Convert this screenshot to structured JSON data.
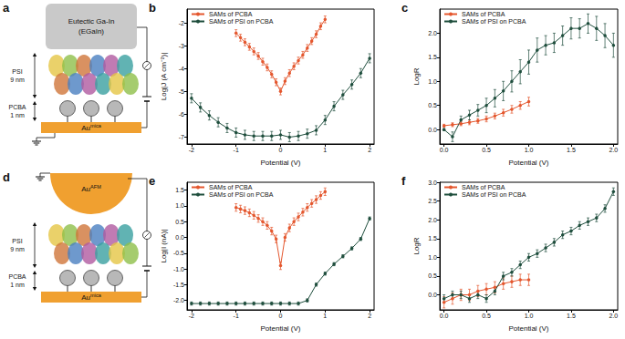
{
  "diagrams": [
    {
      "panel": "a",
      "top_electrode": [
        "Eutectic Ga-In",
        "(EGaIn)"
      ],
      "layers": [
        {
          "label": "PSI",
          "thickness": "9 nm"
        },
        {
          "label": "PCBA",
          "thickness": "1 nm"
        }
      ],
      "substrate": {
        "text": "Au",
        "sup": "mica"
      }
    },
    {
      "panel": "d",
      "top_electrode": {
        "text": "Au",
        "sup": "AFM"
      },
      "layers": [
        {
          "label": "PSI",
          "thickness": "9 nm"
        },
        {
          "label": "PCBA",
          "thickness": "1 nm"
        }
      ],
      "substrate": {
        "text": "Au",
        "sup": "mica"
      }
    }
  ],
  "chart_data": [
    {
      "type": "line",
      "panel": "b",
      "xlabel": "Potential (V)",
      "ylabel": "Log|J (A cm⁻²)|",
      "xlim": [
        -2.1,
        2.1
      ],
      "xticks": [
        -2,
        -1,
        0,
        1,
        2
      ],
      "ylim": [
        -7.3,
        -1.4
      ],
      "yticks": [
        -7,
        -6,
        -5,
        -4,
        -3,
        -2
      ],
      "grid": false,
      "legend": "upper left",
      "series": [
        {
          "name": "SAMs of PCBA",
          "color": "#e4572e",
          "marker": "circle",
          "line_style": "solid",
          "x": [
            -1,
            -0.9,
            -0.8,
            -0.7,
            -0.6,
            -0.5,
            -0.4,
            -0.3,
            -0.2,
            -0.1,
            0,
            0.1,
            0.2,
            0.3,
            0.4,
            0.5,
            0.6,
            0.7,
            0.8,
            0.9,
            1
          ],
          "values": [
            -2.45,
            -2.65,
            -2.85,
            -3.05,
            -3.25,
            -3.45,
            -3.7,
            -3.95,
            -4.25,
            -4.6,
            -5.0,
            -4.55,
            -4.2,
            -3.9,
            -3.65,
            -3.4,
            -3.1,
            -2.8,
            -2.5,
            -2.15,
            -1.85
          ],
          "errors": [
            0.15,
            0.15,
            0.15,
            0.15,
            0.15,
            0.15,
            0.15,
            0.15,
            0.15,
            0.15,
            0.15,
            0.15,
            0.15,
            0.15,
            0.15,
            0.15,
            0.15,
            0.15,
            0.15,
            0.15,
            0.15
          ]
        },
        {
          "name": "SAMs of PSI on PCBA",
          "color": "#1f4e3d",
          "marker": "circle",
          "line_style": "solid",
          "x": [
            -2,
            -1.8,
            -1.6,
            -1.4,
            -1.2,
            -1,
            -0.8,
            -0.6,
            -0.4,
            -0.2,
            0,
            0.2,
            0.4,
            0.6,
            0.8,
            1,
            1.2,
            1.4,
            1.6,
            1.8,
            2
          ],
          "values": [
            -5.3,
            -5.7,
            -6.05,
            -6.35,
            -6.6,
            -6.8,
            -6.9,
            -6.95,
            -6.95,
            -6.95,
            -6.9,
            -7.0,
            -6.95,
            -6.85,
            -6.7,
            -6.25,
            -5.65,
            -5.15,
            -4.7,
            -4.2,
            -3.55
          ],
          "errors": [
            0.2,
            0.2,
            0.2,
            0.2,
            0.2,
            0.2,
            0.2,
            0.2,
            0.2,
            0.2,
            0.2,
            0.2,
            0.2,
            0.2,
            0.2,
            0.2,
            0.2,
            0.2,
            0.2,
            0.2,
            0.2
          ]
        }
      ]
    },
    {
      "type": "line",
      "panel": "c",
      "xlabel": "Potential (V)",
      "ylabel": "LogR",
      "xlim": [
        -0.05,
        2.05
      ],
      "xticks": [
        {
          "value": 0,
          "label": "0.0"
        },
        0.5,
        {
          "value": 1,
          "label": "1.0"
        },
        1.5,
        {
          "value": 2,
          "label": "2.0"
        }
      ],
      "ylim": [
        -0.3,
        2.5
      ],
      "yticks": [
        {
          "value": 0,
          "label": "0.0"
        },
        0.5,
        {
          "value": 1,
          "label": "1.0"
        },
        1.5,
        {
          "value": 2,
          "label": "2.0"
        }
      ],
      "grid": false,
      "legend": "upper left",
      "series": [
        {
          "name": "SAMs of PCBA",
          "color": "#e4572e",
          "marker": "circle",
          "line_style": "solid",
          "x": [
            0,
            0.1,
            0.2,
            0.3,
            0.4,
            0.5,
            0.6,
            0.7,
            0.8,
            0.9,
            1
          ],
          "values": [
            0.08,
            0.1,
            0.12,
            0.15,
            0.18,
            0.22,
            0.28,
            0.35,
            0.42,
            0.5,
            0.58
          ],
          "errors": [
            0.03,
            0.04,
            0.04,
            0.05,
            0.05,
            0.06,
            0.06,
            0.07,
            0.08,
            0.08,
            0.09
          ]
        },
        {
          "name": "SAMs of PSI on PCBA",
          "color": "#1f4e3d",
          "marker": "circle",
          "line_style": "solid",
          "x": [
            0,
            0.1,
            0.2,
            0.3,
            0.4,
            0.5,
            0.6,
            0.7,
            0.8,
            0.9,
            1,
            1.1,
            1.2,
            1.3,
            1.4,
            1.5,
            1.6,
            1.7,
            1.8,
            1.9,
            2
          ],
          "values": [
            0.0,
            -0.15,
            0.2,
            0.3,
            0.4,
            0.5,
            0.65,
            0.8,
            1.0,
            1.2,
            1.4,
            1.65,
            1.75,
            1.8,
            1.95,
            2.1,
            2.1,
            2.2,
            2.1,
            1.95,
            1.75
          ],
          "errors": [
            0.02,
            0.1,
            0.08,
            0.1,
            0.12,
            0.15,
            0.18,
            0.2,
            0.22,
            0.25,
            0.25,
            0.25,
            0.2,
            0.2,
            0.2,
            0.22,
            0.2,
            0.2,
            0.25,
            0.25,
            0.25
          ]
        }
      ]
    },
    {
      "type": "line",
      "panel": "e",
      "xlabel": "Potential (V)",
      "ylabel": "Log|I (nA)|",
      "xlim": [
        -2.1,
        2.1
      ],
      "xticks": [
        -2,
        -1,
        0,
        1,
        2
      ],
      "ylim": [
        -2.3,
        1.75
      ],
      "yticks": [
        {
          "value": -2,
          "label": "-2.0"
        },
        -1.5,
        {
          "value": -1,
          "label": "-1.0"
        },
        -0.5,
        {
          "value": 0,
          "label": "0.0"
        },
        0.5,
        {
          "value": 1,
          "label": "1.0"
        },
        1.5
      ],
      "grid": false,
      "legend": "upper left",
      "series": [
        {
          "name": "SAMs of PCBA",
          "color": "#e4572e",
          "marker": "circle",
          "line_style": "solid",
          "x": [
            -1,
            -0.9,
            -0.8,
            -0.7,
            -0.6,
            -0.5,
            -0.4,
            -0.3,
            -0.2,
            -0.1,
            0,
            0.1,
            0.2,
            0.3,
            0.4,
            0.5,
            0.6,
            0.7,
            0.8,
            0.9,
            1
          ],
          "values": [
            0.95,
            0.9,
            0.85,
            0.78,
            0.7,
            0.6,
            0.5,
            0.38,
            0.2,
            -0.05,
            -0.9,
            0.0,
            0.3,
            0.5,
            0.65,
            0.8,
            0.95,
            1.08,
            1.2,
            1.33,
            1.45
          ],
          "errors": [
            0.12,
            0.12,
            0.12,
            0.12,
            0.12,
            0.12,
            0.12,
            0.12,
            0.12,
            0.12,
            0.12,
            0.12,
            0.12,
            0.12,
            0.12,
            0.12,
            0.12,
            0.12,
            0.12,
            0.12,
            0.12
          ]
        },
        {
          "name": "SAMs of PSI on PCBA",
          "color": "#1f4e3d",
          "marker": "circle",
          "line_style": "solid",
          "x": [
            -2,
            -1.8,
            -1.6,
            -1.4,
            -1.2,
            -1,
            -0.8,
            -0.6,
            -0.4,
            -0.2,
            0,
            0.2,
            0.4,
            0.6,
            0.8,
            1,
            1.2,
            1.4,
            1.6,
            1.8,
            2
          ],
          "values": [
            -2.1,
            -2.1,
            -2.1,
            -2.1,
            -2.1,
            -2.1,
            -2.1,
            -2.1,
            -2.1,
            -2.1,
            -2.1,
            -2.1,
            -2.1,
            -2.0,
            -1.5,
            -1.15,
            -0.85,
            -0.6,
            -0.35,
            -0.05,
            0.6
          ],
          "errors": [
            0.05,
            0.05,
            0.05,
            0.05,
            0.05,
            0.05,
            0.05,
            0.05,
            0.05,
            0.05,
            0.05,
            0.05,
            0.05,
            0.05,
            0.05,
            0.05,
            0.05,
            0.05,
            0.05,
            0.05,
            0.05
          ]
        }
      ]
    },
    {
      "type": "line",
      "panel": "f",
      "xlabel": "Potential (V)",
      "ylabel": "LogR",
      "xlim": [
        -0.05,
        2.05
      ],
      "xticks": [
        {
          "value": 0,
          "label": "0.0"
        },
        0.5,
        {
          "value": 1,
          "label": "1.0"
        },
        1.5,
        {
          "value": 2,
          "label": "2.0"
        }
      ],
      "ylim": [
        -0.4,
        3.0
      ],
      "yticks": [
        {
          "value": 0,
          "label": "0.0"
        },
        0.5,
        {
          "value": 1,
          "label": "1.0"
        },
        1.5,
        {
          "value": 2,
          "label": "2.0"
        },
        2.5,
        {
          "value": 3,
          "label": "3.0"
        }
      ],
      "grid": false,
      "legend": "upper left",
      "series": [
        {
          "name": "SAMs of PCBA",
          "color": "#e4572e",
          "marker": "circle",
          "line_style": "solid",
          "x": [
            0,
            0.1,
            0.2,
            0.3,
            0.4,
            0.5,
            0.6,
            0.7,
            0.8,
            0.9,
            1
          ],
          "values": [
            -0.2,
            -0.1,
            0.0,
            0.0,
            0.1,
            0.15,
            0.2,
            0.3,
            0.35,
            0.4,
            0.4
          ],
          "errors": [
            0.15,
            0.15,
            0.15,
            0.15,
            0.15,
            0.15,
            0.15,
            0.15,
            0.15,
            0.15,
            0.15
          ]
        },
        {
          "name": "SAMs of PSI on PCBA",
          "color": "#1f4e3d",
          "marker": "circle",
          "line_style": "solid",
          "x": [
            0,
            0.1,
            0.2,
            0.3,
            0.4,
            0.5,
            0.6,
            0.7,
            0.8,
            0.9,
            1,
            1.1,
            1.2,
            1.3,
            1.4,
            1.5,
            1.6,
            1.7,
            1.8,
            1.9,
            2
          ],
          "values": [
            -0.1,
            0.0,
            0.0,
            -0.1,
            0.0,
            -0.1,
            0.1,
            0.5,
            0.6,
            0.8,
            1.0,
            1.1,
            1.25,
            1.4,
            1.6,
            1.7,
            1.85,
            1.95,
            2.05,
            2.3,
            2.75
          ],
          "errors": [
            0.1,
            0.1,
            0.1,
            0.1,
            0.1,
            0.1,
            0.1,
            0.1,
            0.1,
            0.1,
            0.1,
            0.1,
            0.1,
            0.1,
            0.1,
            0.1,
            0.1,
            0.1,
            0.1,
            0.1,
            0.1
          ]
        }
      ]
    }
  ]
}
